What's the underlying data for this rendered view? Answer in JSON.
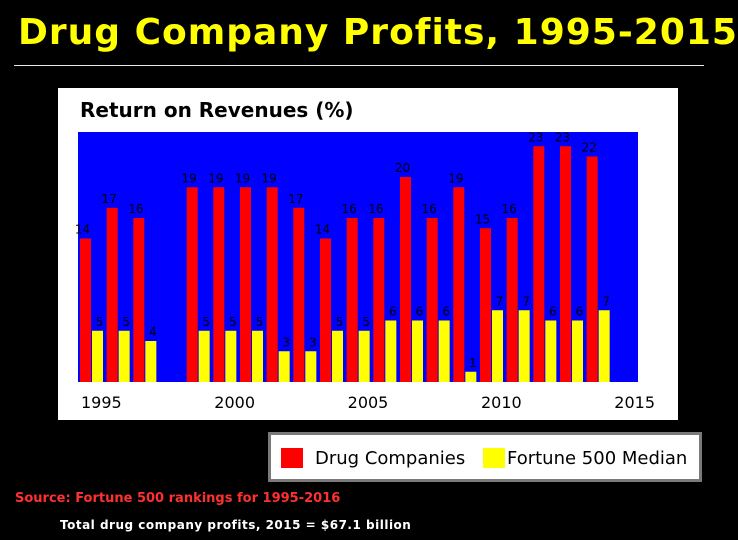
{
  "title": "Drug Company Profits, 1995-2015",
  "colors": {
    "background": "#000000",
    "plot_background": "#0000ff",
    "drug_bar": "#ff0000",
    "fortune_bar": "#ffff00",
    "title": "#ffff00",
    "source": "#ff3030"
  },
  "chart_data": {
    "type": "bar",
    "title": "Return on Revenues (%)",
    "xlabel": "",
    "ylabel": "",
    "ylim": [
      0,
      24
    ],
    "categories": [
      "1995",
      "1996",
      "1997",
      "1998",
      "1999",
      "2000",
      "2001",
      "2002",
      "2003",
      "2004",
      "2005",
      "2006",
      "2007",
      "2008",
      "2009",
      "2010",
      "2011",
      "2012",
      "2013",
      "2014",
      "2015"
    ],
    "x_tick_labels": [
      {
        "year": "1995",
        "label": "1995"
      },
      {
        "year": "2000",
        "label": "2000"
      },
      {
        "year": "2005",
        "label": "2005"
      },
      {
        "year": "2010",
        "label": "2010"
      },
      {
        "year": "2015",
        "label": "2015"
      }
    ],
    "series": [
      {
        "name": "Drug Companies",
        "color": "#ff0000",
        "values": [
          14,
          17,
          16,
          null,
          19,
          19,
          19,
          19,
          17,
          14,
          16,
          16,
          20,
          16,
          19,
          15,
          16,
          23,
          23,
          22,
          null
        ]
      },
      {
        "name": "Fortune 500 Median",
        "color": "#ffff00",
        "values": [
          5,
          5,
          4,
          null,
          5,
          5,
          5,
          3,
          3,
          5,
          5,
          6,
          6,
          6,
          1,
          7,
          7,
          6,
          6,
          7,
          null
        ]
      }
    ]
  },
  "legend": {
    "drug_label": "Drug Companies",
    "fortune_label": "Fortune 500 Median"
  },
  "source": "Source: Fortune 500 rankings for 1995-2016",
  "note": "Total drug company profits, 2015 = $67.1 billion"
}
